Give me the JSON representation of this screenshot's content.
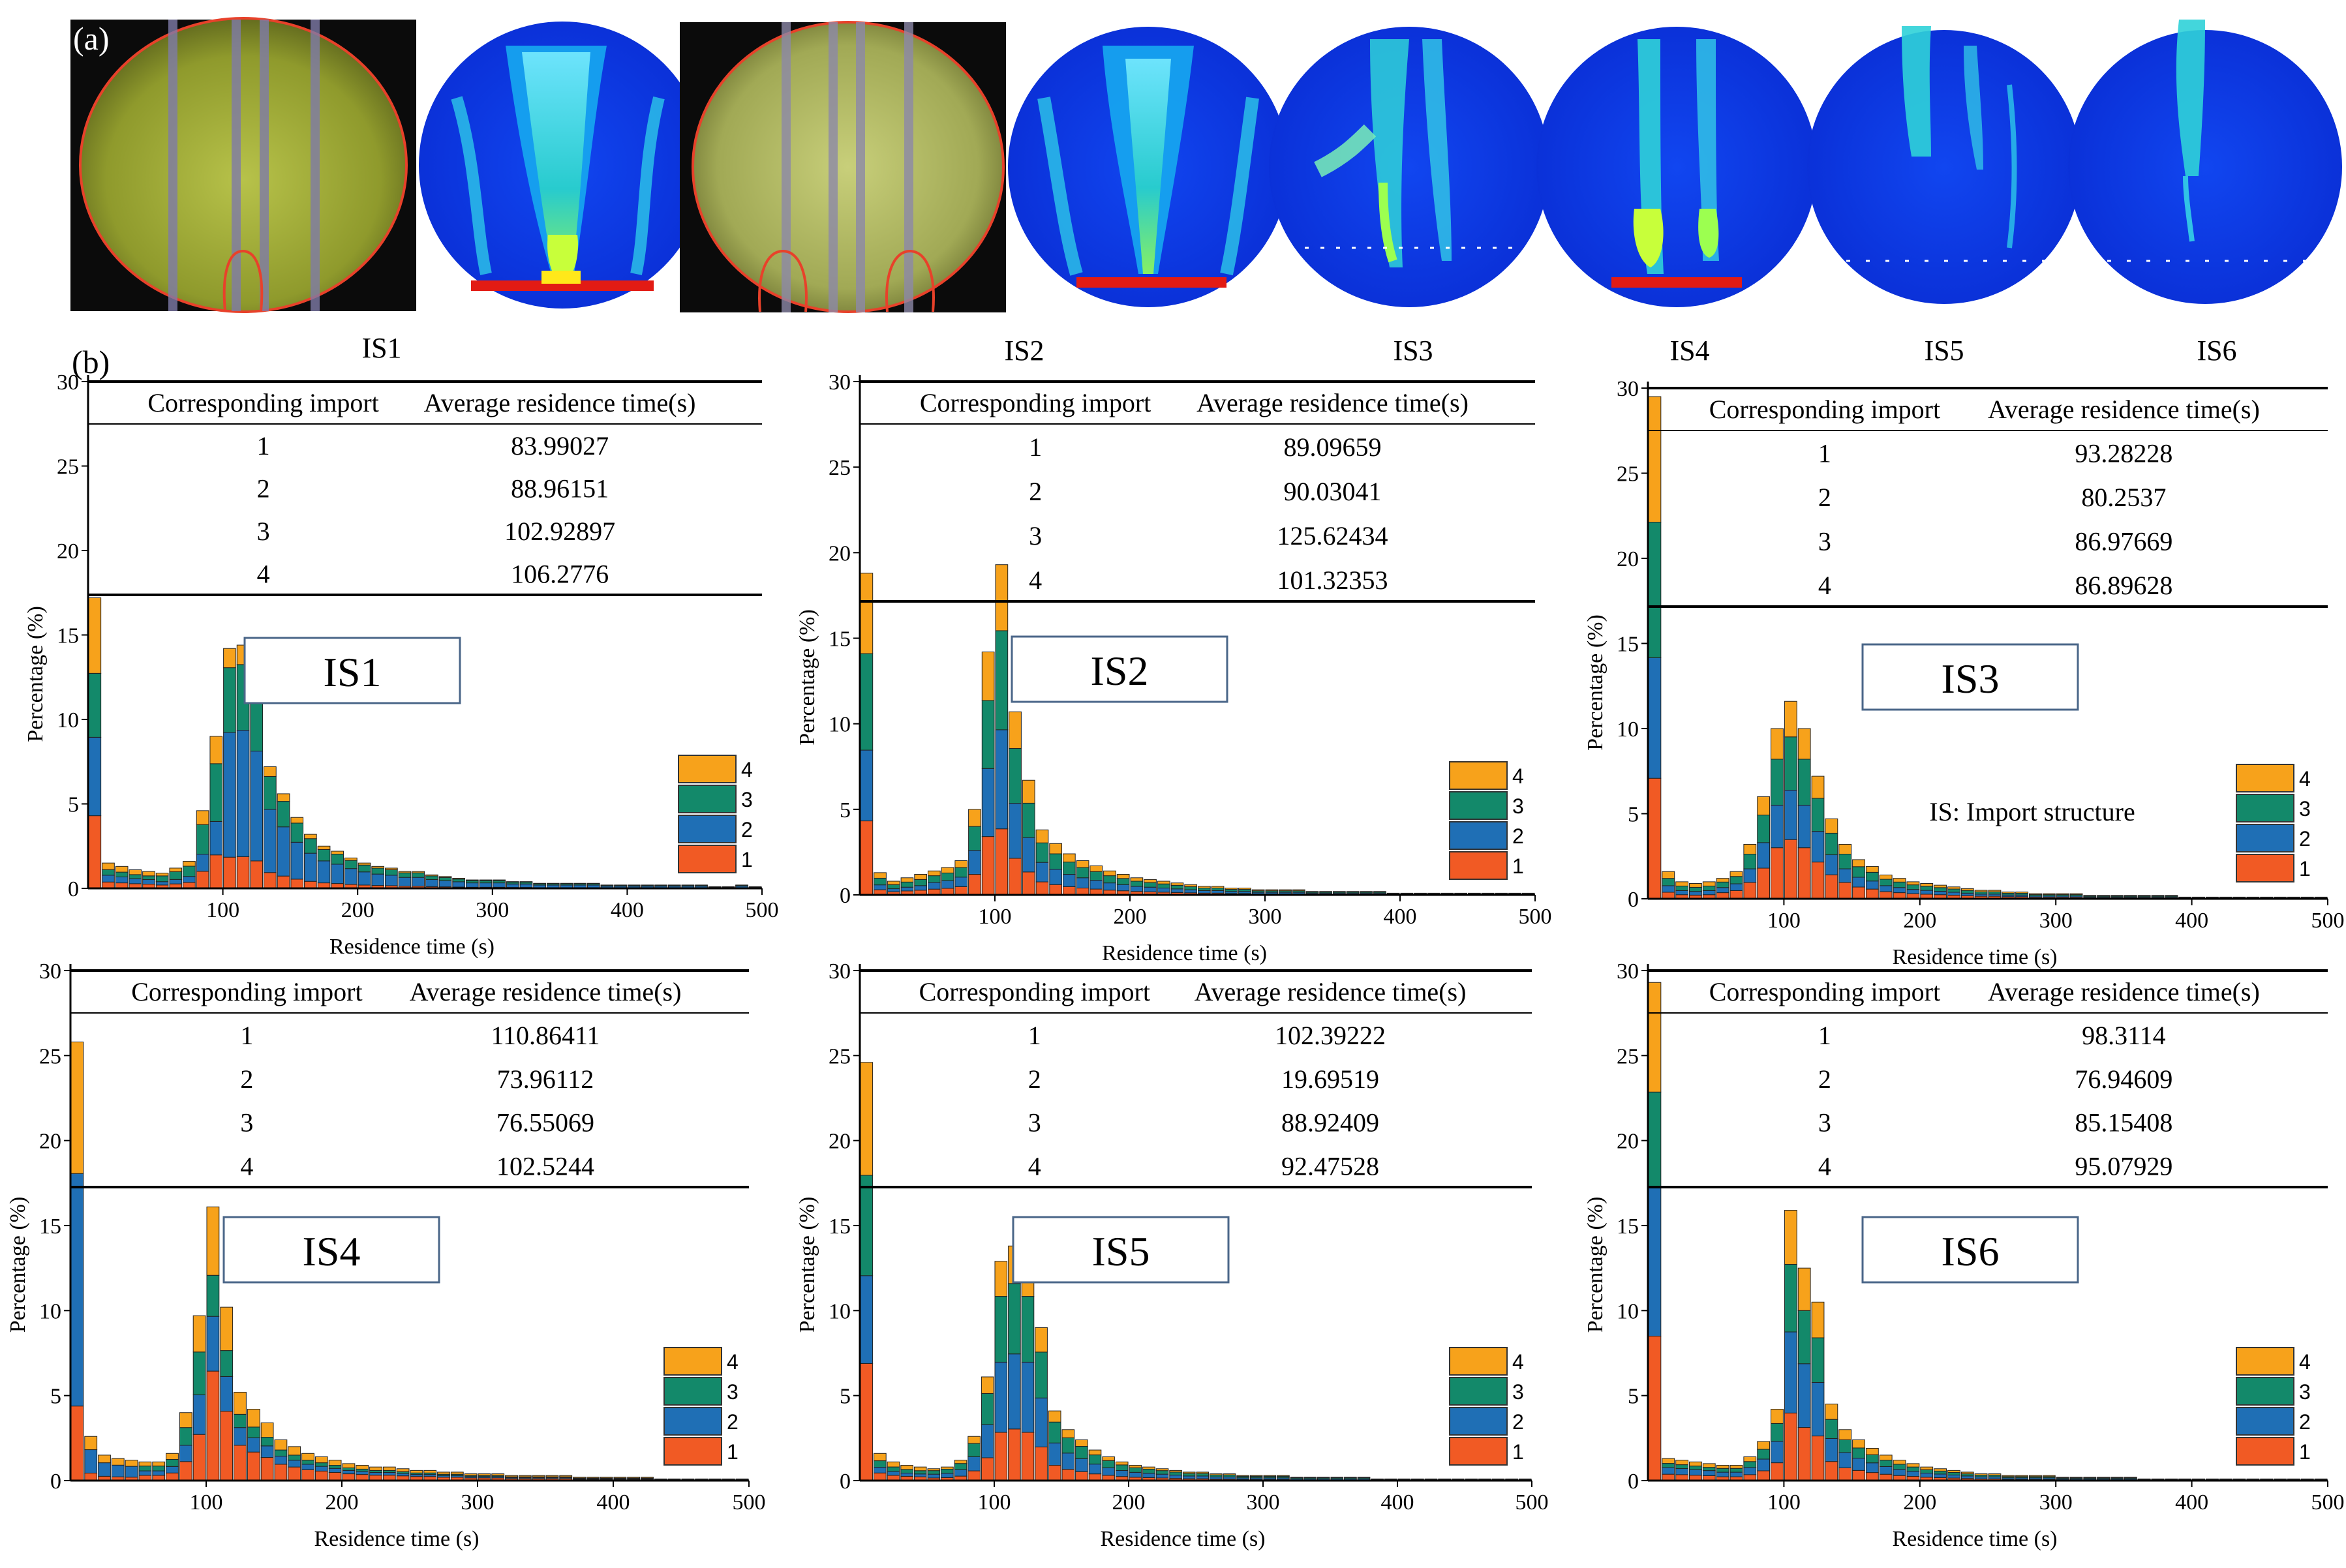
{
  "panel_labels": {
    "a": "(a)",
    "b": "(b)"
  },
  "top_titles": [
    "IS1",
    "IS2",
    "IS3",
    "IS4",
    "IS5",
    "IS6"
  ],
  "note": "IS: Import structure",
  "colors": {
    "1": "#f15a24",
    "2": "#1f6fb5",
    "3": "#13896a",
    "4": "#f7a21b"
  },
  "chart_data": [
    {
      "type": "bar",
      "stacked": true,
      "box_label": "IS1",
      "xlabel": "Residence time (s)",
      "ylabel": "Percentage (%)",
      "xlim": [
        0,
        500
      ],
      "ylim": [
        0,
        30
      ],
      "xticks": [
        100,
        200,
        300,
        400,
        500
      ],
      "yticks": [
        0,
        5,
        10,
        15,
        20,
        25,
        30
      ],
      "legend": [
        "4",
        "3",
        "2",
        "1"
      ],
      "table": {
        "headers": [
          "Corresponding import",
          "Average residence time(s)"
        ],
        "rows": [
          [
            "1",
            "83.99027"
          ],
          [
            "2",
            "88.96151"
          ],
          [
            "3",
            "102.92897"
          ],
          [
            "4",
            "106.2776"
          ]
        ]
      },
      "totals": [
        17.2,
        1.5,
        1.3,
        1.1,
        1.0,
        0.9,
        1.2,
        1.6,
        4.6,
        9.0,
        14.2,
        14.4,
        12.5,
        7.2,
        5.6,
        4.2,
        3.2,
        2.5,
        2.2,
        1.8,
        1.5,
        1.3,
        1.2,
        1.0,
        1.0,
        0.8,
        0.7,
        0.6,
        0.5,
        0.5,
        0.5,
        0.4,
        0.4,
        0.3,
        0.3,
        0.3,
        0.3,
        0.3,
        0.2,
        0.2,
        0.2,
        0.2,
        0.2,
        0.2,
        0.2,
        0.2,
        0.1,
        0.1,
        0.2,
        0.1
      ],
      "shares": [
        [
          0.25,
          0.27,
          0.22,
          0.26
        ],
        [
          0.22,
          0.22,
          0.38,
          0.18
        ],
        [
          0.13,
          0.52,
          0.27,
          0.08
        ]
      ],
      "share_ranges": [
        [
          0,
          5
        ],
        [
          5,
          10
        ],
        [
          10,
          50
        ]
      ]
    },
    {
      "type": "bar",
      "stacked": true,
      "box_label": "IS2",
      "xlabel": "Residence time (s)",
      "ylabel": "Percentage (%)",
      "xlim": [
        0,
        500
      ],
      "ylim": [
        0,
        30
      ],
      "xticks": [
        100,
        200,
        300,
        400,
        500
      ],
      "yticks": [
        0,
        5,
        10,
        15,
        20,
        25,
        30
      ],
      "legend": [
        "4",
        "3",
        "2",
        "1"
      ],
      "table": {
        "headers": [
          "Corresponding import",
          "Average residence time(s)"
        ],
        "rows": [
          [
            "1",
            "89.09659"
          ],
          [
            "2",
            "90.03041"
          ],
          [
            "3",
            "125.62434"
          ],
          [
            "4",
            "101.32353"
          ]
        ]
      },
      "totals": [
        18.8,
        1.3,
        0.8,
        1.0,
        1.2,
        1.4,
        1.6,
        2.0,
        5.0,
        14.2,
        19.3,
        10.7,
        6.7,
        3.8,
        3.0,
        2.4,
        2.0,
        1.7,
        1.4,
        1.2,
        1.0,
        0.9,
        0.8,
        0.7,
        0.6,
        0.5,
        0.5,
        0.4,
        0.4,
        0.3,
        0.3,
        0.3,
        0.3,
        0.2,
        0.2,
        0.2,
        0.2,
        0.2,
        0.2,
        0.1,
        0.1,
        0.1,
        0.1,
        0.1,
        0.1,
        0.1,
        0.1,
        0.1,
        0.1,
        0.1
      ],
      "shares": [
        [
          0.23,
          0.22,
          0.3,
          0.25
        ],
        [
          0.24,
          0.28,
          0.28,
          0.2
        ],
        [
          0.2,
          0.3,
          0.3,
          0.2
        ]
      ],
      "share_ranges": [
        [
          0,
          5
        ],
        [
          5,
          10
        ],
        [
          10,
          50
        ]
      ]
    },
    {
      "type": "bar",
      "stacked": true,
      "box_label": "IS3",
      "xlabel": "Residence time (s)",
      "ylabel": "Percentage (%)",
      "xlim": [
        0,
        500
      ],
      "ylim": [
        0,
        30
      ],
      "xticks": [
        100,
        200,
        300,
        400,
        500
      ],
      "yticks": [
        0,
        5,
        10,
        15,
        20,
        25,
        30
      ],
      "legend": [
        "4",
        "3",
        "2",
        "1"
      ],
      "table": {
        "headers": [
          "Corresponding import",
          "Average residence time(s)"
        ],
        "rows": [
          [
            "1",
            "93.28228"
          ],
          [
            "2",
            "80.2537"
          ],
          [
            "3",
            "86.97669"
          ],
          [
            "4",
            "86.89628"
          ]
        ]
      },
      "totals": [
        29.5,
        1.6,
        1.0,
        0.9,
        1.0,
        1.2,
        1.6,
        3.2,
        6.0,
        10.0,
        11.6,
        10.0,
        7.2,
        4.7,
        3.2,
        2.3,
        1.9,
        1.4,
        1.2,
        1.0,
        0.9,
        0.8,
        0.7,
        0.6,
        0.5,
        0.5,
        0.4,
        0.4,
        0.3,
        0.3,
        0.3,
        0.3,
        0.2,
        0.2,
        0.2,
        0.2,
        0.2,
        0.2,
        0.2,
        0.1,
        0.1,
        0.1,
        0.1,
        0.1,
        0.1,
        0.1,
        0.1,
        0.1,
        0.1,
        0.1
      ],
      "shares": [
        [
          0.24,
          0.24,
          0.27,
          0.25
        ],
        [
          0.3,
          0.25,
          0.27,
          0.18
        ],
        [
          0.3,
          0.25,
          0.27,
          0.18
        ]
      ],
      "share_ranges": [
        [
          0,
          5
        ],
        [
          5,
          10
        ],
        [
          10,
          50
        ]
      ]
    },
    {
      "type": "bar",
      "stacked": true,
      "box_label": "IS4",
      "xlabel": "Residence time (s)",
      "ylabel": "Percentage (%)",
      "xlim": [
        0,
        500
      ],
      "ylim": [
        0,
        30
      ],
      "xticks": [
        100,
        200,
        300,
        400,
        500
      ],
      "yticks": [
        0,
        5,
        10,
        15,
        20,
        25,
        30
      ],
      "legend": [
        "4",
        "3",
        "2",
        "1"
      ],
      "table": {
        "headers": [
          "Corresponding import",
          "Average residence time(s)"
        ],
        "rows": [
          [
            "1",
            "110.86411"
          ],
          [
            "2",
            "73.96112"
          ],
          [
            "3",
            "76.55069"
          ],
          [
            "4",
            "102.5244"
          ]
        ]
      },
      "totals": [
        25.8,
        2.6,
        1.5,
        1.3,
        1.2,
        1.1,
        1.1,
        1.6,
        4.0,
        9.7,
        16.1,
        10.2,
        5.2,
        4.2,
        3.4,
        2.4,
        2.0,
        1.6,
        1.4,
        1.2,
        1.0,
        0.9,
        0.8,
        0.8,
        0.7,
        0.6,
        0.6,
        0.5,
        0.5,
        0.4,
        0.4,
        0.4,
        0.3,
        0.3,
        0.3,
        0.3,
        0.3,
        0.2,
        0.2,
        0.2,
        0.2,
        0.2,
        0.2,
        0.1,
        0.1,
        0.1,
        0.1,
        0.1,
        0.1,
        0.1
      ],
      "shares": [
        [
          0.17,
          0.53,
          0.0,
          0.3
        ],
        [
          0.28,
          0.24,
          0.26,
          0.22
        ],
        [
          0.4,
          0.2,
          0.15,
          0.25
        ]
      ],
      "share_ranges": [
        [
          0,
          5
        ],
        [
          5,
          10
        ],
        [
          10,
          50
        ]
      ]
    },
    {
      "type": "bar",
      "stacked": true,
      "box_label": "IS5",
      "xlabel": "Residence time (s)",
      "ylabel": "Percentage (%)",
      "xlim": [
        0,
        500
      ],
      "ylim": [
        0,
        30
      ],
      "xticks": [
        100,
        200,
        300,
        400,
        500
      ],
      "yticks": [
        0,
        5,
        10,
        15,
        20,
        25,
        30
      ],
      "legend": [
        "4",
        "3",
        "2",
        "1"
      ],
      "table": {
        "headers": [
          "Corresponding import",
          "Average residence time(s)"
        ],
        "rows": [
          [
            "1",
            "102.39222"
          ],
          [
            "2",
            "19.69519"
          ],
          [
            "3",
            "88.92409"
          ],
          [
            "4",
            "92.47528"
          ]
        ]
      },
      "totals": [
        24.6,
        1.6,
        1.1,
        0.9,
        0.8,
        0.7,
        0.8,
        1.2,
        2.6,
        6.1,
        12.9,
        13.8,
        12.9,
        9.0,
        4.1,
        3.0,
        2.4,
        1.8,
        1.4,
        1.1,
        0.9,
        0.8,
        0.7,
        0.6,
        0.5,
        0.5,
        0.4,
        0.4,
        0.3,
        0.3,
        0.3,
        0.3,
        0.2,
        0.2,
        0.2,
        0.2,
        0.2,
        0.2,
        0.1,
        0.1,
        0.1,
        0.1,
        0.1,
        0.1,
        0.1,
        0.1,
        0.1,
        0.1,
        0.1,
        0.1
      ],
      "shares": [
        [
          0.28,
          0.21,
          0.24,
          0.27
        ],
        [
          0.22,
          0.32,
          0.3,
          0.16
        ],
        [
          0.22,
          0.32,
          0.3,
          0.16
        ]
      ],
      "share_ranges": [
        [
          0,
          5
        ],
        [
          5,
          10
        ],
        [
          10,
          50
        ]
      ]
    },
    {
      "type": "bar",
      "stacked": true,
      "box_label": "IS6",
      "xlabel": "Residence time (s)",
      "ylabel": "Percentage (%)",
      "xlim": [
        0,
        500
      ],
      "ylim": [
        0,
        30
      ],
      "xticks": [
        100,
        200,
        300,
        400,
        500
      ],
      "yticks": [
        0,
        5,
        10,
        15,
        20,
        25,
        30
      ],
      "legend": [
        "4",
        "3",
        "2",
        "1"
      ],
      "table": {
        "headers": [
          "Corresponding import",
          "Average residence time(s)"
        ],
        "rows": [
          [
            "1",
            "98.3114"
          ],
          [
            "2",
            "76.94609"
          ],
          [
            "3",
            "85.15408"
          ],
          [
            "4",
            "95.07929"
          ]
        ]
      },
      "totals": [
        29.3,
        1.3,
        1.2,
        1.1,
        1.0,
        0.9,
        0.9,
        1.4,
        2.3,
        4.2,
        15.9,
        12.5,
        10.5,
        4.5,
        3.0,
        2.4,
        1.9,
        1.5,
        1.2,
        1.0,
        0.8,
        0.7,
        0.6,
        0.5,
        0.4,
        0.4,
        0.3,
        0.3,
        0.3,
        0.3,
        0.2,
        0.2,
        0.2,
        0.2,
        0.2,
        0.2,
        0.1,
        0.1,
        0.1,
        0.1,
        0.1,
        0.1,
        0.1,
        0.1,
        0.1,
        0.1,
        0.1,
        0.1,
        0.1,
        0.1
      ],
      "shares": [
        [
          0.29,
          0.3,
          0.19,
          0.22
        ],
        [
          0.25,
          0.3,
          0.25,
          0.2
        ],
        [
          0.25,
          0.3,
          0.25,
          0.2
        ]
      ],
      "share_ranges": [
        [
          0,
          5
        ],
        [
          5,
          10
        ],
        [
          10,
          50
        ]
      ]
    }
  ]
}
